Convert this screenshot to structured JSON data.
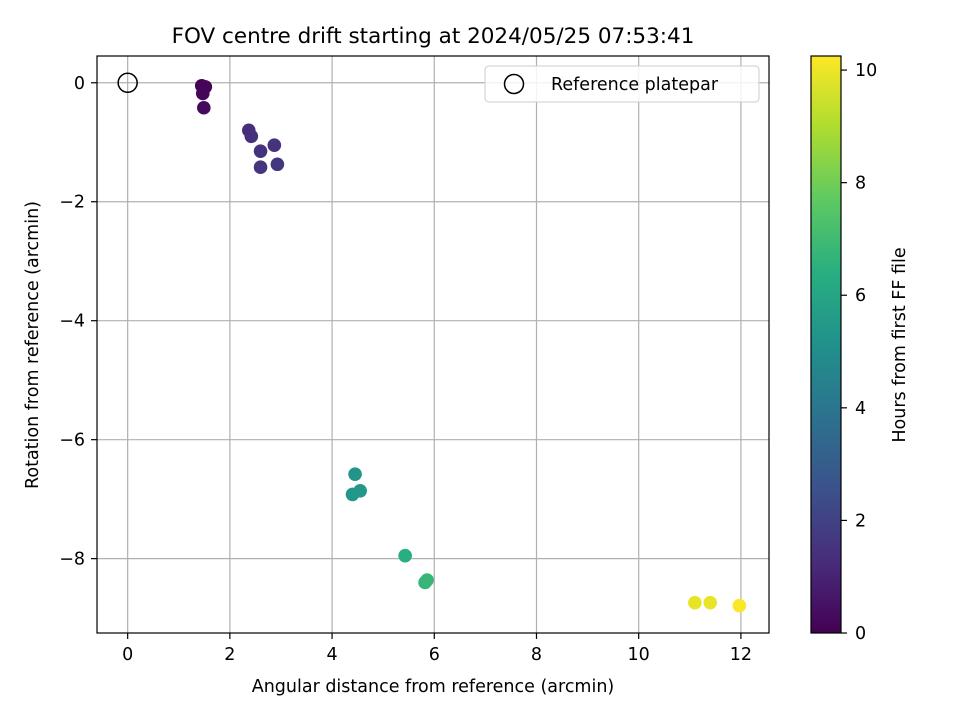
{
  "chart_data": {
    "type": "scatter",
    "title": "FOV centre drift starting at 2024/05/25 07:53:41",
    "xlabel": "Angular distance from reference (arcmin)",
    "ylabel": "Rotation from reference (arcmin)",
    "xlim": [
      -0.6,
      12.55
    ],
    "ylim": [
      -9.25,
      0.45
    ],
    "xticks": [
      0,
      2,
      4,
      6,
      8,
      10,
      12
    ],
    "yticks": [
      0,
      -2,
      -4,
      -6,
      -8
    ],
    "grid": true,
    "legend": {
      "placement": "top-right",
      "entries": [
        {
          "label": "Reference platepar",
          "marker": "open-circle"
        }
      ]
    },
    "reference": {
      "x": 0,
      "y": 0
    },
    "colorbar": {
      "label": "Hours from first FF file",
      "colormap": "viridis",
      "range": [
        0,
        10.25
      ],
      "ticks": [
        0,
        2,
        4,
        6,
        8,
        10
      ]
    },
    "points": [
      {
        "x": 1.45,
        "y": -0.05,
        "hours": 0.05
      },
      {
        "x": 1.52,
        "y": -0.07,
        "hours": 0.1
      },
      {
        "x": 1.47,
        "y": -0.18,
        "hours": 0.15
      },
      {
        "x": 1.49,
        "y": -0.42,
        "hours": 0.25
      },
      {
        "x": 2.37,
        "y": -0.8,
        "hours": 1.3
      },
      {
        "x": 2.42,
        "y": -0.9,
        "hours": 1.35
      },
      {
        "x": 2.6,
        "y": -1.15,
        "hours": 1.45
      },
      {
        "x": 2.87,
        "y": -1.05,
        "hours": 1.5
      },
      {
        "x": 2.6,
        "y": -1.42,
        "hours": 1.55
      },
      {
        "x": 2.93,
        "y": -1.37,
        "hours": 1.6
      },
      {
        "x": 4.45,
        "y": -6.58,
        "hours": 5.3
      },
      {
        "x": 4.4,
        "y": -6.92,
        "hours": 5.35
      },
      {
        "x": 4.55,
        "y": -6.86,
        "hours": 5.4
      },
      {
        "x": 5.43,
        "y": -7.95,
        "hours": 6.4
      },
      {
        "x": 5.82,
        "y": -8.4,
        "hours": 6.75
      },
      {
        "x": 5.86,
        "y": -8.36,
        "hours": 6.8
      },
      {
        "x": 11.1,
        "y": -8.74,
        "hours": 9.9
      },
      {
        "x": 11.4,
        "y": -8.74,
        "hours": 9.95
      },
      {
        "x": 11.97,
        "y": -8.79,
        "hours": 10.2
      }
    ]
  }
}
